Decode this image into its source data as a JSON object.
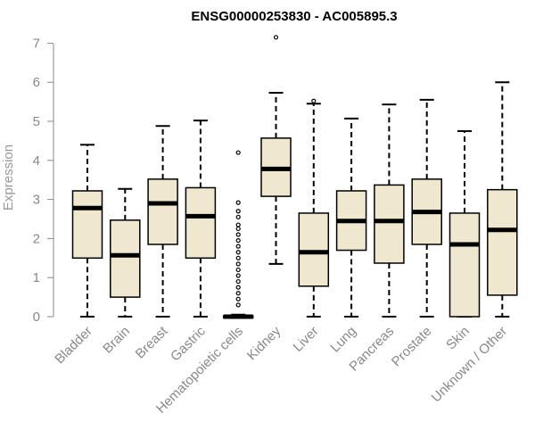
{
  "chart_data": {
    "type": "box",
    "title": "ENSG00000253830 - AC005895.3",
    "ylabel": "Expression",
    "xlabel": "",
    "ylim": [
      0,
      7.2
    ],
    "yticks": [
      0,
      1,
      2,
      3,
      4,
      5,
      6,
      7
    ],
    "grid": false,
    "box_color": "#efe8cf",
    "categories": [
      "Bladder",
      "Brain",
      "Breast",
      "Gastric",
      "Hematopoietic cells",
      "Kidney",
      "Liver",
      "Lung",
      "Pancreas",
      "Prostate",
      "Skin",
      "Unknown / Other"
    ],
    "boxes": [
      {
        "category": "Bladder",
        "min": 0,
        "q1": 1.5,
        "median": 2.78,
        "q3": 3.22,
        "max": 4.4,
        "outliers": []
      },
      {
        "category": "Brain",
        "min": 0,
        "q1": 0.5,
        "median": 1.57,
        "q3": 2.47,
        "max": 3.27,
        "outliers": []
      },
      {
        "category": "Breast",
        "min": 0,
        "q1": 1.85,
        "median": 2.9,
        "q3": 3.52,
        "max": 4.88,
        "outliers": []
      },
      {
        "category": "Gastric",
        "min": 0,
        "q1": 1.5,
        "median": 2.57,
        "q3": 3.3,
        "max": 5.02,
        "outliers": []
      },
      {
        "category": "Hematopoietic cells",
        "min": 0,
        "q1": 0,
        "median": 0,
        "q3": 0.02,
        "max": 0.05,
        "outliers": [
          0.3,
          0.45,
          0.6,
          0.75,
          0.9,
          1.05,
          1.2,
          1.35,
          1.5,
          1.65,
          1.8,
          1.95,
          2.1,
          2.25,
          2.35,
          2.55,
          2.7,
          2.92,
          4.2
        ]
      },
      {
        "category": "Kidney",
        "min": 1.35,
        "q1": 3.08,
        "median": 3.78,
        "q3": 4.57,
        "max": 5.73,
        "outliers": [
          7.15
        ]
      },
      {
        "category": "Liver",
        "min": 0,
        "q1": 0.78,
        "median": 1.65,
        "q3": 2.65,
        "max": 5.45,
        "outliers": [
          5.52
        ]
      },
      {
        "category": "Lung",
        "min": 0,
        "q1": 1.7,
        "median": 2.45,
        "q3": 3.22,
        "max": 5.07,
        "outliers": []
      },
      {
        "category": "Pancreas",
        "min": 0,
        "q1": 1.37,
        "median": 2.45,
        "q3": 3.37,
        "max": 5.43,
        "outliers": []
      },
      {
        "category": "Prostate",
        "min": 0,
        "q1": 1.85,
        "median": 2.68,
        "q3": 3.52,
        "max": 5.55,
        "outliers": []
      },
      {
        "category": "Skin",
        "min": 0,
        "q1": 0,
        "median": 1.85,
        "q3": 2.65,
        "max": 4.75,
        "outliers": []
      },
      {
        "category": "Unknown / Other",
        "min": 0,
        "q1": 0.55,
        "median": 2.22,
        "q3": 3.25,
        "max": 6.0,
        "outliers": []
      }
    ]
  }
}
